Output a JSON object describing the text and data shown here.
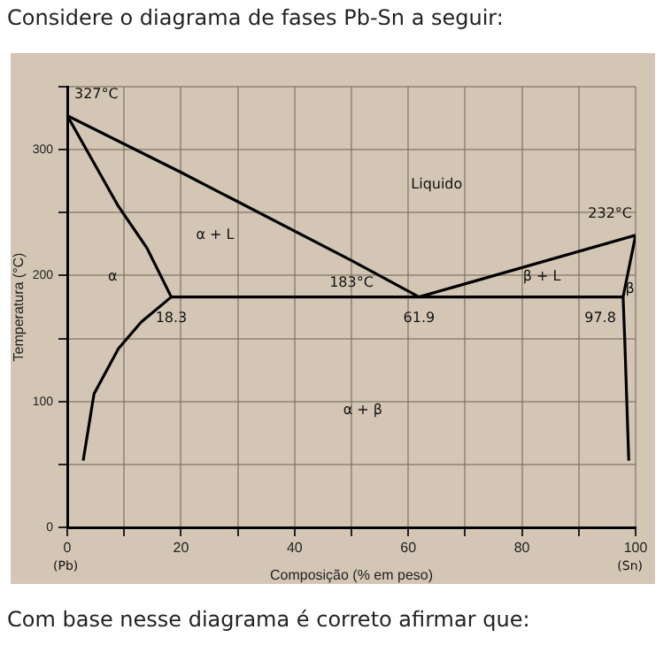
{
  "chart_data": {
    "type": "line",
    "title": "Considere o diagrama de fases Pb-Sn a seguir:",
    "xlabel": "Composição (% em peso)",
    "ylabel": "Temperatura (°C)",
    "xlim": [
      0,
      100
    ],
    "xticks": [
      0,
      {
        "value": 10,
        "label": null
      },
      20,
      {
        "value": 30,
        "label": null
      },
      40,
      {
        "value": 50,
        "label": null
      },
      60,
      {
        "value": 70,
        "label": null
      },
      80,
      {
        "value": 90,
        "label": null
      },
      100
    ],
    "ylim": [
      0,
      350
    ],
    "yticks": [
      0,
      {
        "value": 50,
        "label": null
      },
      100,
      {
        "value": 150,
        "label": null
      },
      200,
      {
        "value": 250,
        "label": null
      },
      300,
      {
        "value": 350,
        "label": null
      }
    ],
    "grid": true,
    "legend": false,
    "marker": "none",
    "line_style": "solid",
    "series": [
      {
        "color": "#000000",
        "x": [
          0,
          20,
          50,
          61.9
        ],
        "values": [
          327,
          282,
          212,
          183
        ]
      },
      {
        "color": "#000000",
        "x": [
          61.9,
          100
        ],
        "values": [
          183,
          232
        ]
      },
      {
        "color": "#000000",
        "x": [
          0,
          9,
          14,
          18.3,
          13,
          9,
          4.7,
          2.8
        ],
        "values": [
          327,
          255,
          222,
          183,
          163,
          142,
          106,
          53
        ]
      },
      {
        "color": "#000000",
        "x": [
          18.3,
          97.8
        ],
        "values": [
          183,
          183
        ]
      },
      {
        "color": "#000000",
        "x": [
          100,
          97.8,
          98.1,
          98.8
        ],
        "values": [
          232,
          183,
          148,
          53
        ]
      }
    ],
    "annotations": [
      {
        "text": "327°C",
        "x": 0,
        "y": 327
      },
      {
        "text": "232°C",
        "x": 100,
        "y": 232
      },
      {
        "text": "183°C",
        "x": 50,
        "y": 183
      },
      {
        "text": "18.3",
        "x": 18.3,
        "y": 183
      },
      {
        "text": "61.9",
        "x": 61.9,
        "y": 183
      },
      {
        "text": "97.8",
        "x": 97.8,
        "y": 183
      },
      "Liquido",
      "α + L",
      "α",
      "β + L",
      "β",
      "α + β",
      "(Pb)",
      "(Sn)",
      "Com base nesse diagrama é correto afirmar que:"
    ]
  }
}
